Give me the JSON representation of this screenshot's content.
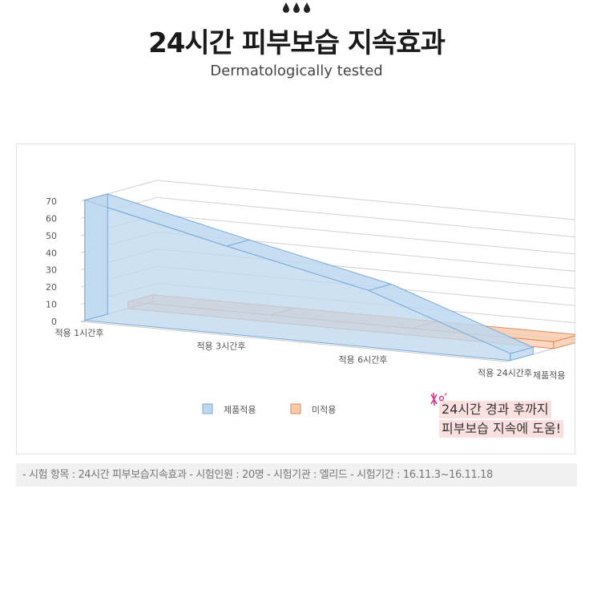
{
  "header": {
    "title": "24시간 피부보습 지속효과",
    "subtitle": "Dermatologically tested"
  },
  "chart_data": {
    "type": "area",
    "title": "",
    "categories": [
      "적용 1시간후",
      "적용 3시간후",
      "적용 6시간후",
      "적용 24시간후"
    ],
    "series": [
      {
        "name": "제품적용",
        "values": [
          70,
          51,
          33,
          4
        ],
        "color": "#bdd7ee",
        "stroke": "#7aa9d8"
      },
      {
        "name": "미적용",
        "values": [
          4,
          4,
          4,
          4
        ],
        "color": "#f8cbad",
        "stroke": "#e08a5a"
      }
    ],
    "yticks": [
      0,
      10,
      20,
      30,
      40,
      50,
      60,
      70
    ],
    "ylim": [
      0,
      70
    ],
    "grid": true,
    "legend": "bottom"
  },
  "note": {
    "line1": "24시간 경과 후까지",
    "line2": "피부보습 지속에 도움!"
  },
  "footer": {
    "text": "- 시험 항목 : 24시간 피부보습지속효과  - 시험인원 : 20명  - 시험기관 : 엘리드  - 시험기간 : 16.11.3~16.11.18"
  }
}
